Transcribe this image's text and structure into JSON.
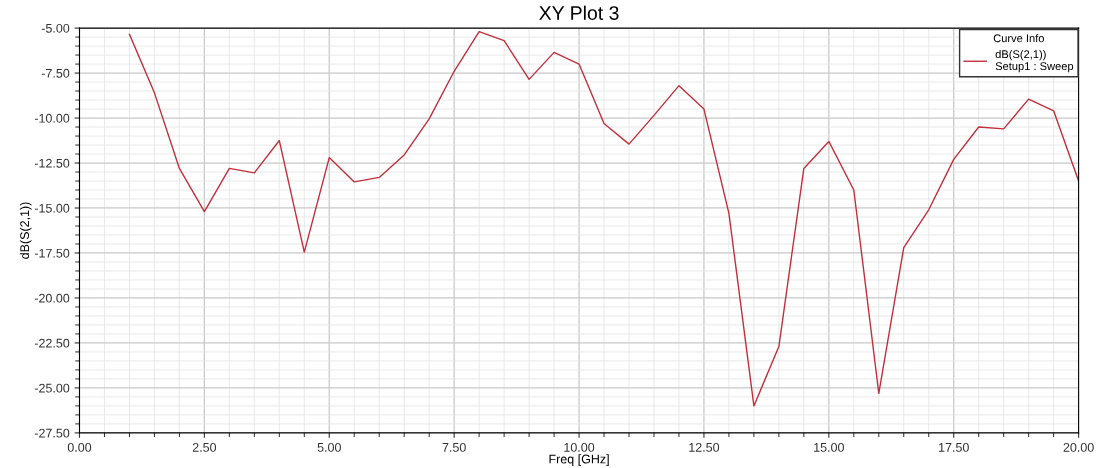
{
  "chart_data": {
    "type": "line",
    "title": "XY Plot 3",
    "xlabel": "Freq [GHz]",
    "ylabel": "dB(S(2,1))",
    "legend_title": "Curve Info",
    "x": [
      1,
      1.5,
      2,
      2.5,
      3,
      3.5,
      4,
      4.5,
      5,
      5.5,
      6,
      6.5,
      7,
      7.5,
      8,
      8.5,
      9,
      9.5,
      10,
      10.5,
      11,
      11.5,
      12,
      12.5,
      13,
      13.5,
      14,
      14.5,
      15,
      15.5,
      16,
      16.5,
      17,
      17.5,
      18,
      18.5,
      19,
      19.5,
      20
    ],
    "series": [
      {
        "name": "dB(S(2,1))\nSetup1 : Sweep",
        "color": "#c0303a",
        "values": [
          -5.35,
          -8.6,
          -12.8,
          -15.2,
          -12.8,
          -13.05,
          -11.25,
          -17.45,
          -12.2,
          -13.55,
          -13.3,
          -12.05,
          -10.05,
          -7.4,
          -5.2,
          -5.7,
          -7.85,
          -6.35,
          -7.0,
          -10.3,
          -11.45,
          -9.85,
          -8.2,
          -9.5,
          -15.3,
          -26.0,
          -22.7,
          -12.8,
          -11.3,
          -14.0,
          -25.3,
          -17.2,
          -15.1,
          -12.3,
          -10.5,
          -10.6,
          -8.95,
          -9.6,
          -13.5
        ]
      }
    ],
    "xlim": [
      0,
      20
    ],
    "ylim": [
      -27.5,
      -5
    ],
    "xticks": [
      {
        "value": 0,
        "label": "0.00"
      },
      {
        "value": 2.5,
        "label": "2.50"
      },
      {
        "value": 5,
        "label": "5.00"
      },
      {
        "value": 7.5,
        "label": "7.50"
      },
      {
        "value": 10,
        "label": "10.00"
      },
      {
        "value": 12.5,
        "label": "12.50"
      },
      {
        "value": 15,
        "label": "15.00"
      },
      {
        "value": 17.5,
        "label": "17.50"
      },
      {
        "value": 20,
        "label": "20.00"
      }
    ],
    "yticks": [
      {
        "value": -27.5,
        "label": "-27.50"
      },
      {
        "value": -25,
        "label": "-25.00"
      },
      {
        "value": -22.5,
        "label": "-22.50"
      },
      {
        "value": -20,
        "label": "-20.00"
      },
      {
        "value": -17.5,
        "label": "-17.50"
      },
      {
        "value": -15,
        "label": "-15.00"
      },
      {
        "value": -12.5,
        "label": "-12.50"
      },
      {
        "value": -10,
        "label": "-10.00"
      },
      {
        "value": -7.5,
        "label": "-7.50"
      },
      {
        "value": -5,
        "label": "-5.00"
      }
    ],
    "grid": true,
    "legend": "top right",
    "marker": "none",
    "line_style": "solid"
  }
}
